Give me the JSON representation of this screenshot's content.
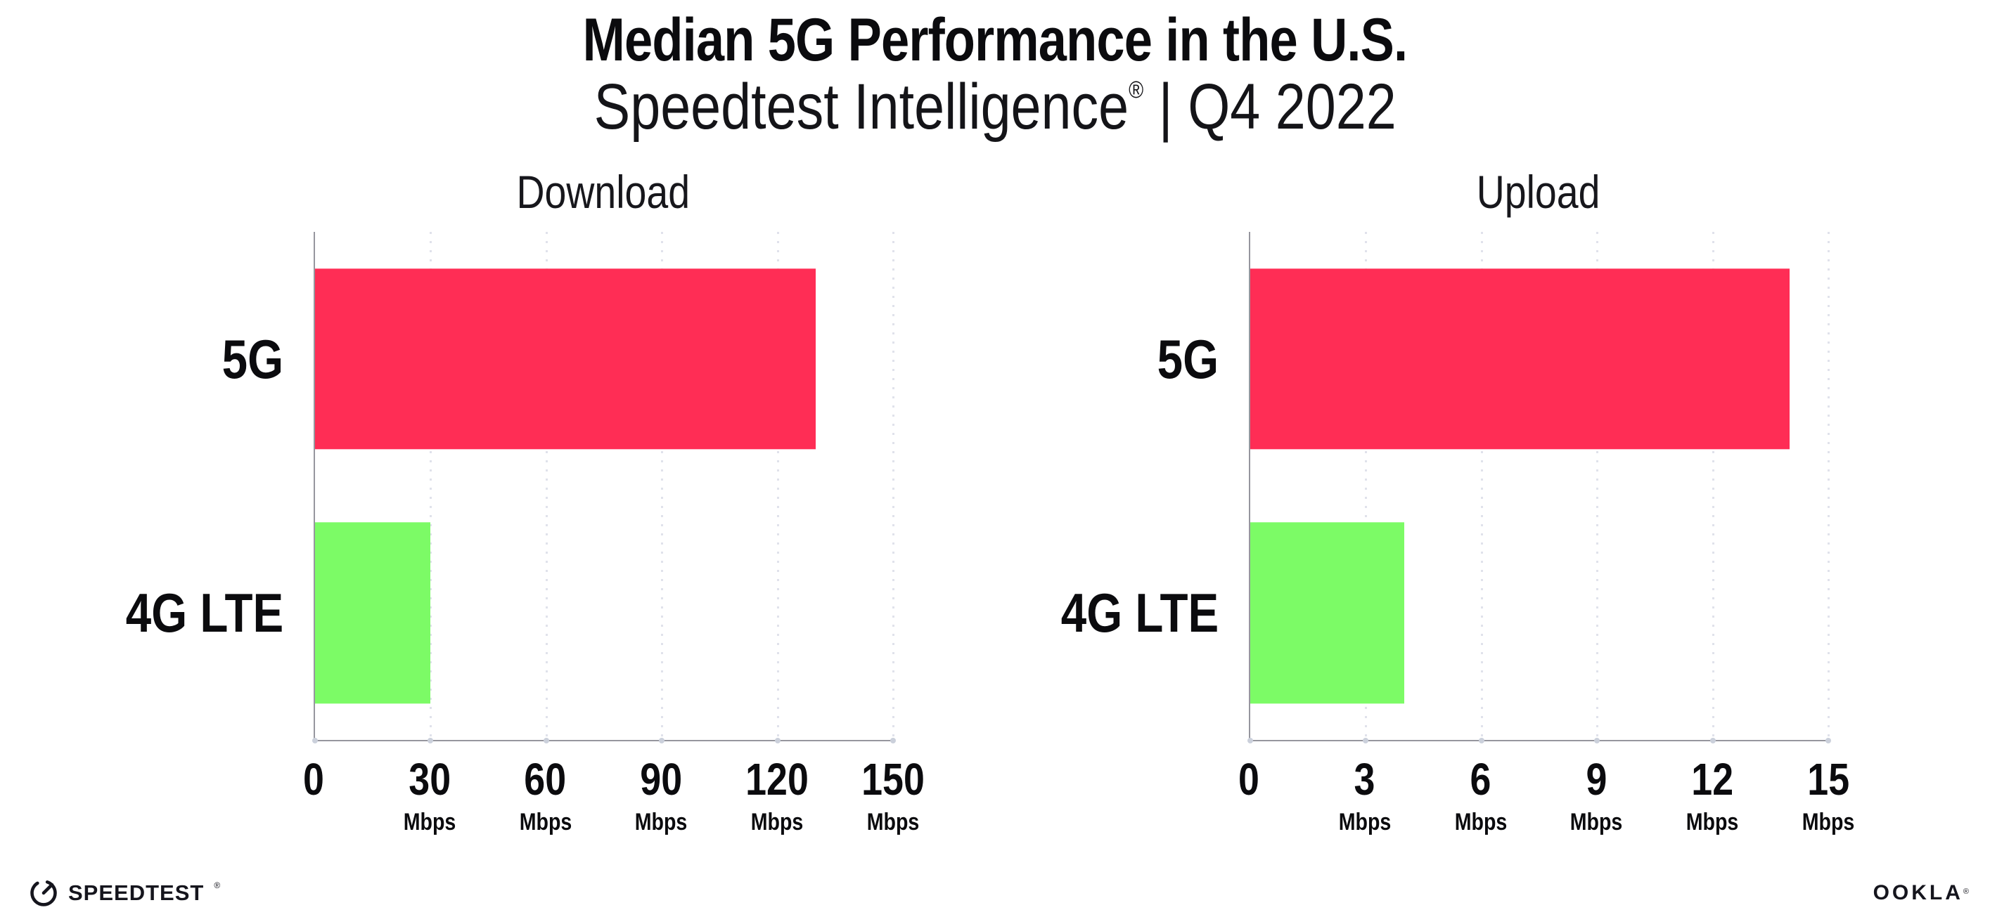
{
  "header": {
    "title": "Median 5G Performance in the U.S.",
    "subtitle_brand": "Speedtest Intelligence",
    "subtitle_reg": "®",
    "subtitle_rest": " | Q4 2022"
  },
  "chart_data": [
    {
      "type": "bar",
      "orientation": "horizontal",
      "title": "Download",
      "categories": [
        "5G",
        "4G LTE"
      ],
      "values": [
        130,
        30
      ],
      "unit": "Mbps",
      "xlim": [
        0,
        150
      ],
      "xticks": [
        0,
        30,
        60,
        90,
        120,
        150
      ],
      "bar_colors": [
        "#FF2D55",
        "#7CFB66"
      ],
      "grid": "vertical-dotted",
      "legend": "none"
    },
    {
      "type": "bar",
      "orientation": "horizontal",
      "title": "Upload",
      "categories": [
        "5G",
        "4G LTE"
      ],
      "values": [
        14,
        4
      ],
      "unit": "Mbps",
      "xlim": [
        0,
        15
      ],
      "xticks": [
        0,
        3,
        6,
        9,
        12,
        15
      ],
      "bar_colors": [
        "#FF2D55",
        "#7CFB66"
      ],
      "grid": "vertical-dotted",
      "legend": "none"
    }
  ],
  "footer": {
    "speedtest_label": "SPEEDTEST",
    "speedtest_reg": "®",
    "ookla_label": "OOKLA",
    "ookla_reg": "®"
  },
  "colors": {
    "bar_5g": "#FF2D55",
    "bar_4g_lte": "#7CFB66",
    "axis": "#96969E",
    "gridline": "#E0E2EB",
    "text": "#0B0B0E"
  }
}
